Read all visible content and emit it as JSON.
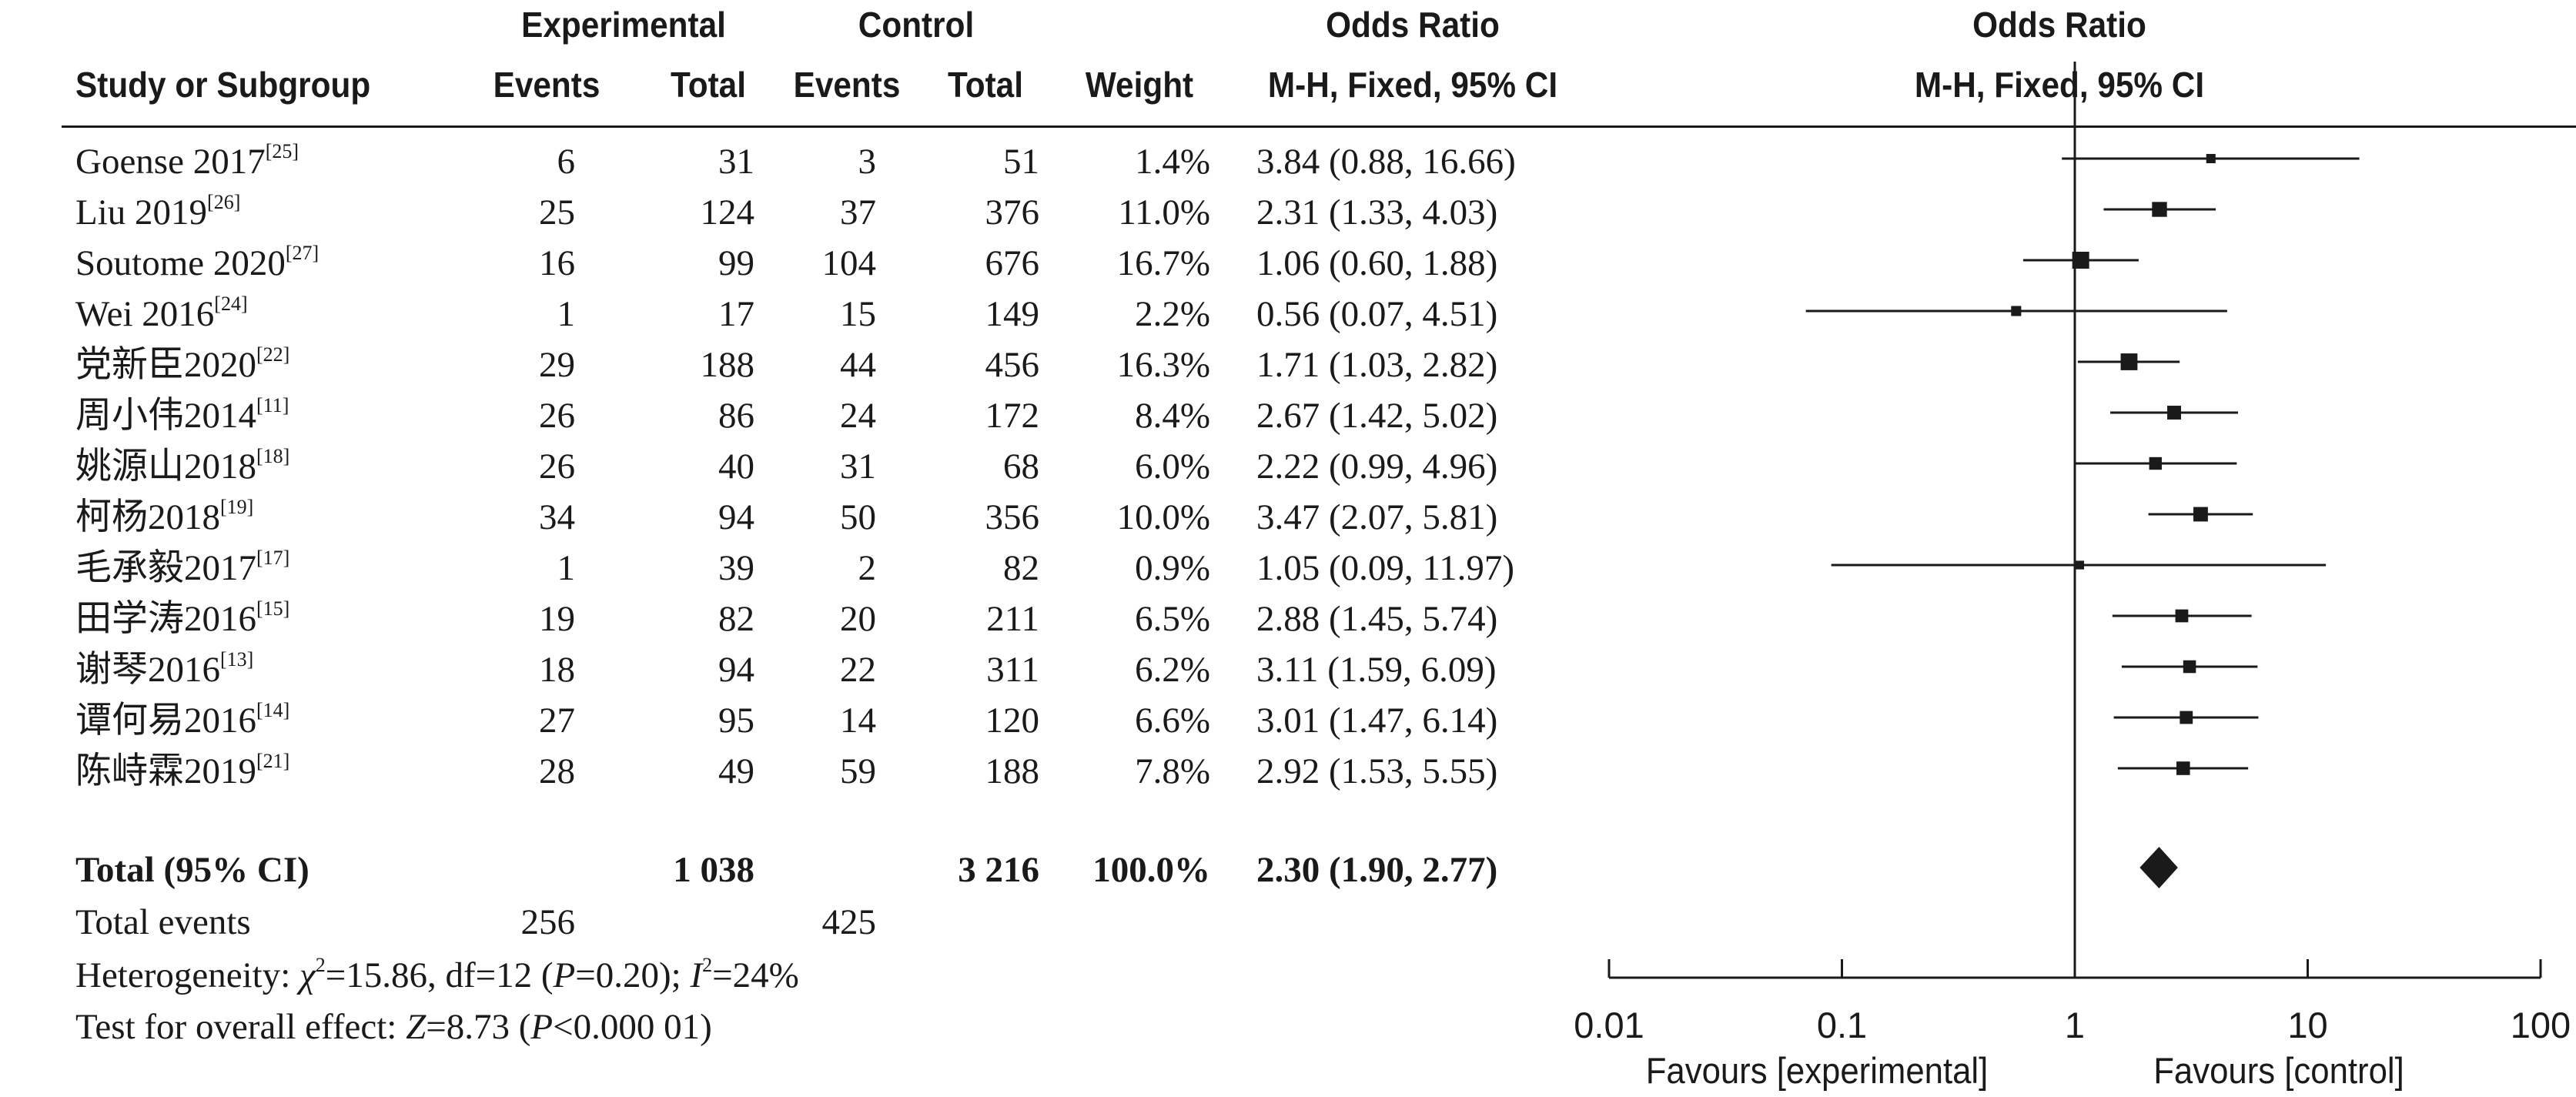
{
  "chart_data": {
    "type": "forest",
    "header": {
      "group1": "Experimental",
      "group2": "Control",
      "col_study": "Study or Subgroup",
      "col_events1": "Events",
      "col_total1": "Total",
      "col_events2": "Events",
      "col_total2": "Total",
      "col_weight": "Weight",
      "col_or_title": "Odds Ratio",
      "col_or_method": "M-H, Fixed, 95% CI",
      "plot_title": "Odds Ratio",
      "plot_method": "M-H, Fixed, 95% CI"
    },
    "studies": [
      {
        "name": "Goense 2017",
        "ref": "[25]",
        "events_exp": "6",
        "total_exp": "31",
        "events_ctrl": "3",
        "total_ctrl": "51",
        "weight": "1.4%",
        "ci_text": "3.84 (0.88, 16.66)",
        "or": 3.84,
        "lo": 0.88,
        "hi": 16.66,
        "w": 1.4
      },
      {
        "name": "Liu 2019",
        "ref": "[26]",
        "events_exp": "25",
        "total_exp": "124",
        "events_ctrl": "37",
        "total_ctrl": "376",
        "weight": "11.0%",
        "ci_text": "2.31 (1.33, 4.03)",
        "or": 2.31,
        "lo": 1.33,
        "hi": 4.03,
        "w": 11.0
      },
      {
        "name": "Soutome 2020",
        "ref": "[27]",
        "events_exp": "16",
        "total_exp": "99",
        "events_ctrl": "104",
        "total_ctrl": "676",
        "weight": "16.7%",
        "ci_text": "1.06 (0.60, 1.88)",
        "or": 1.06,
        "lo": 0.6,
        "hi": 1.88,
        "w": 16.7
      },
      {
        "name": "Wei 2016",
        "ref": "[24]",
        "events_exp": "1",
        "total_exp": "17",
        "events_ctrl": "15",
        "total_ctrl": "149",
        "weight": "2.2%",
        "ci_text": "0.56 (0.07, 4.51)",
        "or": 0.56,
        "lo": 0.07,
        "hi": 4.51,
        "w": 2.2
      },
      {
        "name": "党新臣2020",
        "ref": "[22]",
        "events_exp": "29",
        "total_exp": "188",
        "events_ctrl": "44",
        "total_ctrl": "456",
        "weight": "16.3%",
        "ci_text": "1.71 (1.03, 2.82)",
        "or": 1.71,
        "lo": 1.03,
        "hi": 2.82,
        "w": 16.3
      },
      {
        "name": "周小伟2014",
        "ref": "[11]",
        "events_exp": "26",
        "total_exp": "86",
        "events_ctrl": "24",
        "total_ctrl": "172",
        "weight": "8.4%",
        "ci_text": "2.67 (1.42, 5.02)",
        "or": 2.67,
        "lo": 1.42,
        "hi": 5.02,
        "w": 8.4
      },
      {
        "name": "姚源山2018",
        "ref": "[18]",
        "events_exp": "26",
        "total_exp": "40",
        "events_ctrl": "31",
        "total_ctrl": "68",
        "weight": "6.0%",
        "ci_text": "2.22 (0.99, 4.96)",
        "or": 2.22,
        "lo": 0.99,
        "hi": 4.96,
        "w": 6.0
      },
      {
        "name": "柯杨2018",
        "ref": "[19]",
        "events_exp": "34",
        "total_exp": "94",
        "events_ctrl": "50",
        "total_ctrl": "356",
        "weight": "10.0%",
        "ci_text": "3.47 (2.07, 5.81)",
        "or": 3.47,
        "lo": 2.07,
        "hi": 5.81,
        "w": 10.0
      },
      {
        "name": "毛承毅2017",
        "ref": "[17]",
        "events_exp": "1",
        "total_exp": "39",
        "events_ctrl": "2",
        "total_ctrl": "82",
        "weight": "0.9%",
        "ci_text": "1.05 (0.09, 11.97)",
        "or": 1.05,
        "lo": 0.09,
        "hi": 11.97,
        "w": 0.9
      },
      {
        "name": "田学涛2016",
        "ref": "[15]",
        "events_exp": "19",
        "total_exp": "82",
        "events_ctrl": "20",
        "total_ctrl": "211",
        "weight": "6.5%",
        "ci_text": "2.88 (1.45, 5.74)",
        "or": 2.88,
        "lo": 1.45,
        "hi": 5.74,
        "w": 6.5
      },
      {
        "name": "谢琴2016",
        "ref": "[13]",
        "events_exp": "18",
        "total_exp": "94",
        "events_ctrl": "22",
        "total_ctrl": "311",
        "weight": "6.2%",
        "ci_text": "3.11 (1.59, 6.09)",
        "or": 3.11,
        "lo": 1.59,
        "hi": 6.09,
        "w": 6.2
      },
      {
        "name": "谭何易2016",
        "ref": "[14]",
        "events_exp": "27",
        "total_exp": "95",
        "events_ctrl": "14",
        "total_ctrl": "120",
        "weight": "6.6%",
        "ci_text": "3.01 (1.47, 6.14)",
        "or": 3.01,
        "lo": 1.47,
        "hi": 6.14,
        "w": 6.6
      },
      {
        "name": "陈峙霖2019",
        "ref": "[21]",
        "events_exp": "28",
        "total_exp": "49",
        "events_ctrl": "59",
        "total_ctrl": "188",
        "weight": "7.8%",
        "ci_text": "2.92 (1.53, 5.55)",
        "or": 2.92,
        "lo": 1.53,
        "hi": 5.55,
        "w": 7.8
      }
    ],
    "total": {
      "label": "Total (95% CI)",
      "total_exp": "1 038",
      "total_ctrl": "3 216",
      "weight": "100.0%",
      "ci_text": "2.30 (1.90, 2.77)",
      "or": 2.3,
      "lo": 1.9,
      "hi": 2.77
    },
    "total_events": {
      "label": "Total events",
      "exp": "256",
      "ctrl": "425"
    },
    "heterogeneity": {
      "label": "Heterogeneity: ",
      "chi_sym": "χ",
      "chi_sup": "2",
      "chi_val": "=15.86, df=12 (",
      "p_sym": "P",
      "p_val": "=0.20); ",
      "i_sym": "I",
      "i_sup": "2",
      "i_val": "=24%"
    },
    "overall_effect": {
      "label": "Test for overall effect: ",
      "z_sym": "Z",
      "z_val": "=8.73 (",
      "p_sym": "P",
      "p_val": "<0.000 01)"
    },
    "axis": {
      "scale": "log",
      "range": [
        0.01,
        100
      ],
      "ticks": [
        0.01,
        0.1,
        1,
        10,
        100
      ],
      "tick_labels": [
        "0.01",
        "0.1",
        "1",
        "10",
        "100"
      ],
      "null_line": 1
    },
    "favours_left": "Favours [experimental]",
    "favours_right": "Favours [control]"
  }
}
